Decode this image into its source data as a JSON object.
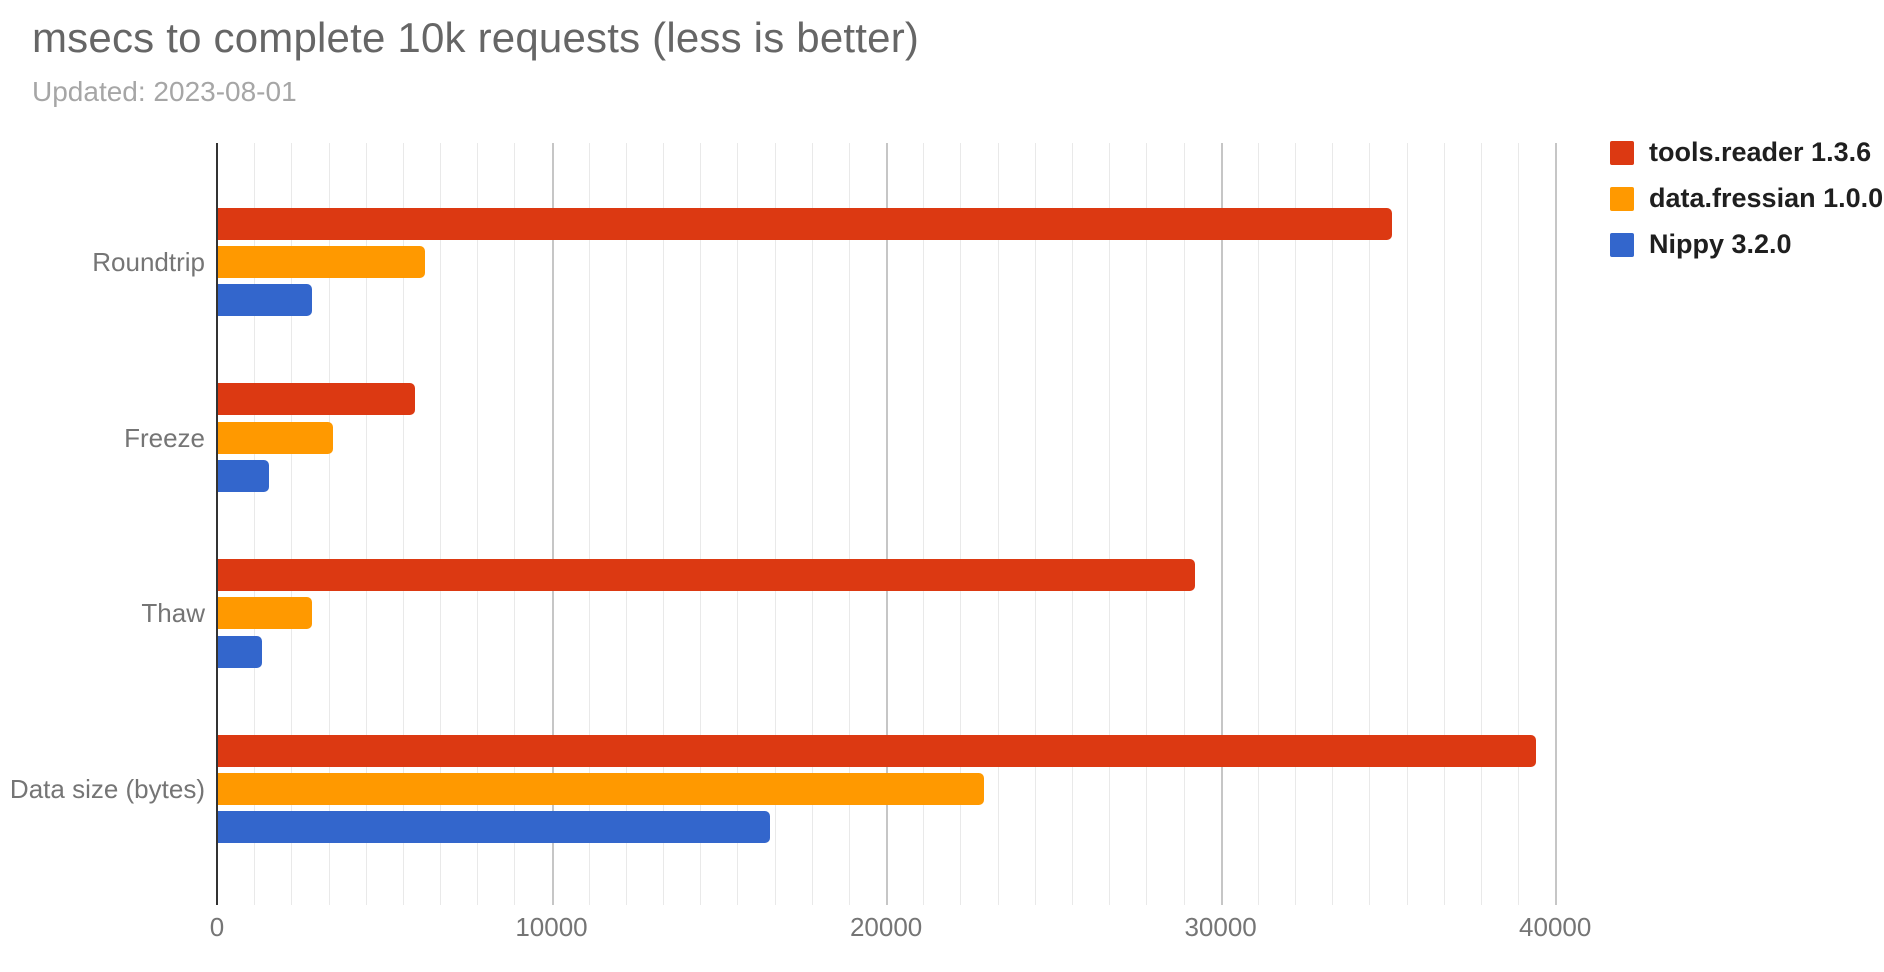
{
  "header": {
    "title": "msecs to complete 10k requests (less is better)",
    "subtitle": "Updated: 2023-08-01"
  },
  "colors": {
    "series_red": "#dc3912",
    "series_orange": "#ff9900",
    "series_blue": "#3366cc",
    "title_text": "#666666",
    "subtitle_text": "#a6a6a6",
    "axis_text": "#757575",
    "legend_text": "#1f1f1f",
    "minor_gridline": "#e9e9e9",
    "major_gridline": "#c6c6c6",
    "baseline": "#333333"
  },
  "legend": {
    "position": "top-right",
    "items": [
      {
        "label": "tools.reader 1.3.6",
        "color": "#dc3912"
      },
      {
        "label": "data.fressian 1.0.0",
        "color": "#ff9900"
      },
      {
        "label": "Nippy 3.2.0",
        "color": "#3366cc"
      }
    ]
  },
  "chart_data": {
    "type": "bar",
    "orientation": "horizontal",
    "title": "msecs to complete 10k requests (less is better)",
    "subtitle": "Updated: 2023-08-01",
    "categories": [
      "Roundtrip",
      "Freeze",
      "Thaw",
      "Data size (bytes)"
    ],
    "series": [
      {
        "name": "tools.reader 1.3.6",
        "color": "#dc3912",
        "values": [
          35100,
          5900,
          29200,
          39400
        ]
      },
      {
        "name": "data.fressian 1.0.0",
        "color": "#ff9900",
        "values": [
          6200,
          3430,
          2820,
          22900
        ]
      },
      {
        "name": "Nippy 3.2.0",
        "color": "#3366cc",
        "values": [
          2820,
          1520,
          1320,
          16500
        ]
      }
    ],
    "xlabel": "",
    "ylabel": "",
    "xticks": [
      0,
      10000,
      20000,
      30000,
      40000
    ],
    "xtick_labels": [
      "0",
      "10000",
      "20000",
      "30000",
      "40000"
    ],
    "xlim": [
      0,
      41100
    ],
    "minor_gridlines_per_major": 8,
    "grid": true,
    "legend_position": "top-right"
  }
}
